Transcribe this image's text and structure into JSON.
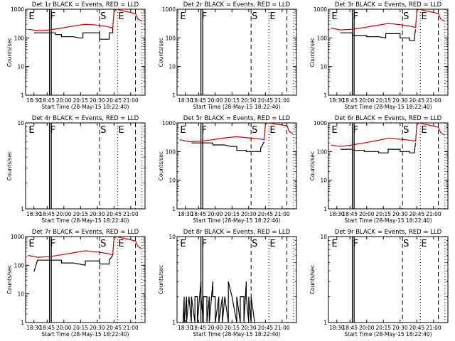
{
  "chart_data": [
    {
      "type": "line",
      "title": "Det 1r BLACK = Events, RED = LLD",
      "xlabel": "Start Time (28-May-15 18:22:40)",
      "ylabel": "Counts/sec",
      "xtick_labels": [
        "18:30",
        "18:45",
        "20:00",
        "20:15",
        "20:30",
        "20:45",
        "21:00"
      ],
      "ytick_labels": [
        "1",
        "10",
        "100",
        "1000"
      ],
      "ylim": [
        1,
        1000
      ],
      "yscale": "log",
      "event_markers": [
        "E",
        "F",
        "S",
        "E"
      ],
      "series": [
        {
          "color": "#000000",
          "x": [
            0.07,
            0.25,
            0.25,
            0.3,
            0.3,
            0.4,
            0.45,
            0.48,
            0.48,
            0.55,
            0.6,
            0.62,
            0.62,
            0.7,
            0.7,
            0.73,
            0.73
          ],
          "y": [
            150,
            150,
            130,
            130,
            110,
            110,
            100,
            100,
            150,
            150,
            150,
            150,
            90,
            90,
            150,
            150,
            220
          ]
        },
        {
          "color": "#cc0000",
          "x": [
            0.02,
            0.1,
            0.2,
            0.3,
            0.4,
            0.5,
            0.6,
            0.68,
            0.73,
            0.74,
            0.76,
            0.92,
            0.94,
            0.97
          ],
          "y": [
            200,
            180,
            190,
            220,
            260,
            300,
            280,
            250,
            220,
            800,
            1300,
            700,
            450,
            400
          ]
        }
      ]
    },
    {
      "type": "line",
      "title": "Det 2r BLACK = Events, RED = LLD",
      "xlabel": "Start Time (28-May-15 18:22:40)",
      "ylabel": "Counts/sec",
      "xtick_labels": [
        "18:30",
        "18:45",
        "20:00",
        "20:15",
        "20:30",
        "20:45",
        "21:00"
      ],
      "ytick_labels": [
        "1",
        "10",
        "100",
        "1000"
      ],
      "ylim": [
        1,
        1000
      ],
      "yscale": "log",
      "event_markers": [
        "E",
        "F",
        "S",
        "E"
      ],
      "series": []
    },
    {
      "type": "line",
      "title": "Det 3r BLACK = Events, RED = LLD",
      "xlabel": "Start Time (28-May-15 18:22:40)",
      "ylabel": "Counts/sec",
      "xtick_labels": [
        "18:30",
        "18:45",
        "20:00",
        "20:15",
        "20:30",
        "20:45",
        "21:00"
      ],
      "ytick_labels": [
        "1",
        "10",
        "100",
        "1000"
      ],
      "ylim": [
        1,
        1000
      ],
      "yscale": "log",
      "event_markers": [
        "E",
        "F",
        "S",
        "E"
      ],
      "series": [
        {
          "color": "#000000",
          "x": [
            0.1,
            0.2,
            0.2,
            0.32,
            0.32,
            0.42,
            0.48,
            0.48,
            0.56,
            0.6,
            0.6,
            0.68,
            0.68,
            0.72,
            0.72,
            0.73
          ],
          "y": [
            150,
            150,
            120,
            120,
            110,
            110,
            100,
            140,
            140,
            140,
            100,
            100,
            80,
            80,
            110,
            200
          ]
        },
        {
          "color": "#cc0000",
          "x": [
            0.02,
            0.1,
            0.2,
            0.3,
            0.4,
            0.5,
            0.6,
            0.68,
            0.73,
            0.74,
            0.76,
            0.92,
            0.94,
            0.97
          ],
          "y": [
            220,
            190,
            200,
            230,
            270,
            320,
            290,
            260,
            230,
            900,
            1400,
            700,
            450,
            380
          ]
        }
      ]
    },
    {
      "type": "line",
      "title": "Det 4r BLACK = Events, RED = LLD",
      "xlabel": "Start Time (28-May-15 18:22:40)",
      "ylabel": "Counts/sec",
      "xtick_labels": [
        "18:30",
        "18:45",
        "20:00",
        "20:15",
        "20:30",
        "20:45",
        "21:00"
      ],
      "ytick_labels": [
        "1",
        "10"
      ],
      "ylim": [
        1,
        10
      ],
      "yscale": "log",
      "event_markers": [
        "E",
        "F",
        "S",
        "E"
      ],
      "series": []
    },
    {
      "type": "line",
      "title": "Det 5r BLACK = Events, RED = LLD",
      "xlabel": "Start Time (28-May-15 18:22:40)",
      "ylabel": "Counts/sec",
      "xtick_labels": [
        "18:30",
        "18:45",
        "20:00",
        "20:15",
        "20:30",
        "20:45",
        "21:00"
      ],
      "ytick_labels": [
        "1",
        "10",
        "100",
        "1000"
      ],
      "ylim": [
        1,
        1000
      ],
      "yscale": "log",
      "event_markers": [
        "E",
        "F",
        "S",
        "E"
      ],
      "series": [
        {
          "color": "#000000",
          "x": [
            0.12,
            0.3,
            0.3,
            0.4,
            0.45,
            0.5,
            0.5,
            0.58,
            0.58,
            0.7,
            0.7,
            0.73
          ],
          "y": [
            200,
            200,
            170,
            170,
            150,
            150,
            110,
            110,
            100,
            100,
            130,
            220
          ]
        },
        {
          "color": "#cc0000",
          "x": [
            0.02,
            0.1,
            0.2,
            0.3,
            0.4,
            0.5,
            0.6,
            0.68,
            0.73,
            0.74,
            0.76,
            0.92,
            0.94,
            0.97
          ],
          "y": [
            260,
            220,
            230,
            260,
            300,
            330,
            300,
            280,
            260,
            900,
            1400,
            800,
            500,
            420
          ]
        }
      ]
    },
    {
      "type": "line",
      "title": "Det 6r BLACK = Events, RED = LLD",
      "xlabel": "Start Time (28-May-15 18:22:40)",
      "ylabel": "Counts/sec",
      "xtick_labels": [
        "18:30",
        "18:45",
        "20:00",
        "20:15",
        "20:30",
        "20:45",
        "21:00"
      ],
      "ytick_labels": [
        "1",
        "10",
        "100",
        "1000"
      ],
      "ylim": [
        1,
        1000
      ],
      "yscale": "log",
      "event_markers": [
        "E",
        "F",
        "S",
        "E"
      ],
      "series": [
        {
          "color": "#000000",
          "x": [
            0.1,
            0.2,
            0.2,
            0.3,
            0.3,
            0.42,
            0.42,
            0.5,
            0.5,
            0.6,
            0.6,
            0.68,
            0.68,
            0.72,
            0.72,
            0.73
          ],
          "y": [
            120,
            120,
            110,
            110,
            100,
            100,
            90,
            90,
            120,
            120,
            100,
            100,
            90,
            90,
            110,
            200
          ]
        },
        {
          "color": "#cc0000",
          "x": [
            0.02,
            0.1,
            0.2,
            0.3,
            0.4,
            0.5,
            0.6,
            0.68,
            0.73,
            0.74,
            0.76,
            0.92,
            0.94,
            0.97
          ],
          "y": [
            170,
            150,
            170,
            200,
            240,
            290,
            270,
            250,
            230,
            850,
            1300,
            700,
            450,
            380
          ]
        }
      ]
    },
    {
      "type": "line",
      "title": "Det 7r BLACK = Events, RED = LLD",
      "xlabel": "Start Time (28-May-15 18:22:40)",
      "ylabel": "Counts/sec",
      "xtick_labels": [
        "18:30",
        "18:45",
        "20:00",
        "20:15",
        "20:30",
        "20:45",
        "21:00"
      ],
      "ytick_labels": [
        "1",
        "10",
        "100",
        "1000"
      ],
      "ylim": [
        1,
        1000
      ],
      "yscale": "log",
      "event_markers": [
        "E",
        "F",
        "S",
        "E"
      ],
      "series": [
        {
          "color": "#000000",
          "x": [
            0.07,
            0.1,
            0.1,
            0.3,
            0.3,
            0.4,
            0.5,
            0.5,
            0.6,
            0.62,
            0.62,
            0.7,
            0.7,
            0.73
          ],
          "y": [
            60,
            150,
            150,
            150,
            120,
            120,
            100,
            140,
            140,
            140,
            110,
            110,
            150,
            220
          ]
        },
        {
          "color": "#cc0000",
          "x": [
            0.02,
            0.1,
            0.2,
            0.3,
            0.4,
            0.5,
            0.6,
            0.68,
            0.73,
            0.74,
            0.76,
            0.92,
            0.94,
            0.97
          ],
          "y": [
            220,
            190,
            200,
            230,
            270,
            320,
            290,
            260,
            230,
            850,
            1300,
            700,
            450,
            380
          ]
        }
      ]
    },
    {
      "type": "line",
      "title": "Det 8r BLACK = Events, RED = LLD",
      "xlabel": "Start Time (28-May-15 18:22:40)",
      "ylabel": "Counts/sec",
      "xtick_labels": [
        "18:30",
        "18:45",
        "20:00",
        "20:15",
        "20:30",
        "20:45",
        "21:00"
      ],
      "ytick_labels": [
        "1",
        "10"
      ],
      "ylim": [
        1,
        10
      ],
      "yscale": "log",
      "event_markers": [
        "E",
        "F",
        "S",
        "E"
      ],
      "series": [
        {
          "color": "#000000",
          "x": [
            0.05,
            0.06,
            0.06,
            0.08,
            0.08,
            0.1,
            0.1,
            0.12,
            0.12,
            0.15,
            0.15,
            0.17,
            0.17,
            0.2,
            0.2,
            0.22,
            0.22,
            0.25,
            0.25,
            0.27,
            0.27,
            0.3,
            0.3,
            0.32,
            0.32,
            0.35,
            0.35,
            0.38,
            0.38,
            0.4,
            0.4,
            0.43,
            0.43,
            0.46,
            0.46,
            0.5,
            0.5,
            0.53,
            0.53,
            0.56,
            0.56,
            0.58,
            0.58,
            0.6,
            0.6,
            0.62,
            0.62,
            0.65
          ],
          "y": [
            1,
            2,
            1,
            2,
            1,
            2,
            2,
            1,
            2,
            1,
            2,
            2,
            1,
            3,
            2,
            1,
            2,
            2,
            1,
            2,
            1,
            3,
            2,
            2,
            1,
            2,
            1,
            2,
            1,
            2,
            2,
            1,
            3,
            2,
            2,
            1,
            2,
            1,
            2,
            2,
            1,
            3,
            2,
            1,
            2,
            1,
            2,
            1
          ]
        }
      ]
    },
    {
      "type": "line",
      "title": "Det 9r BLACK = Events, RED = LLD",
      "xlabel": "Start Time (28-May-15 18:22:40)",
      "ylabel": "Counts/sec",
      "xtick_labels": [
        "18:30",
        "18:45",
        "20:00",
        "20:15",
        "20:30",
        "20:45",
        "21:00"
      ],
      "ytick_labels": [
        "1",
        "10"
      ],
      "ylim": [
        1,
        10
      ],
      "yscale": "log",
      "event_markers": [
        "E",
        "F",
        "S",
        "E"
      ],
      "series": []
    }
  ]
}
